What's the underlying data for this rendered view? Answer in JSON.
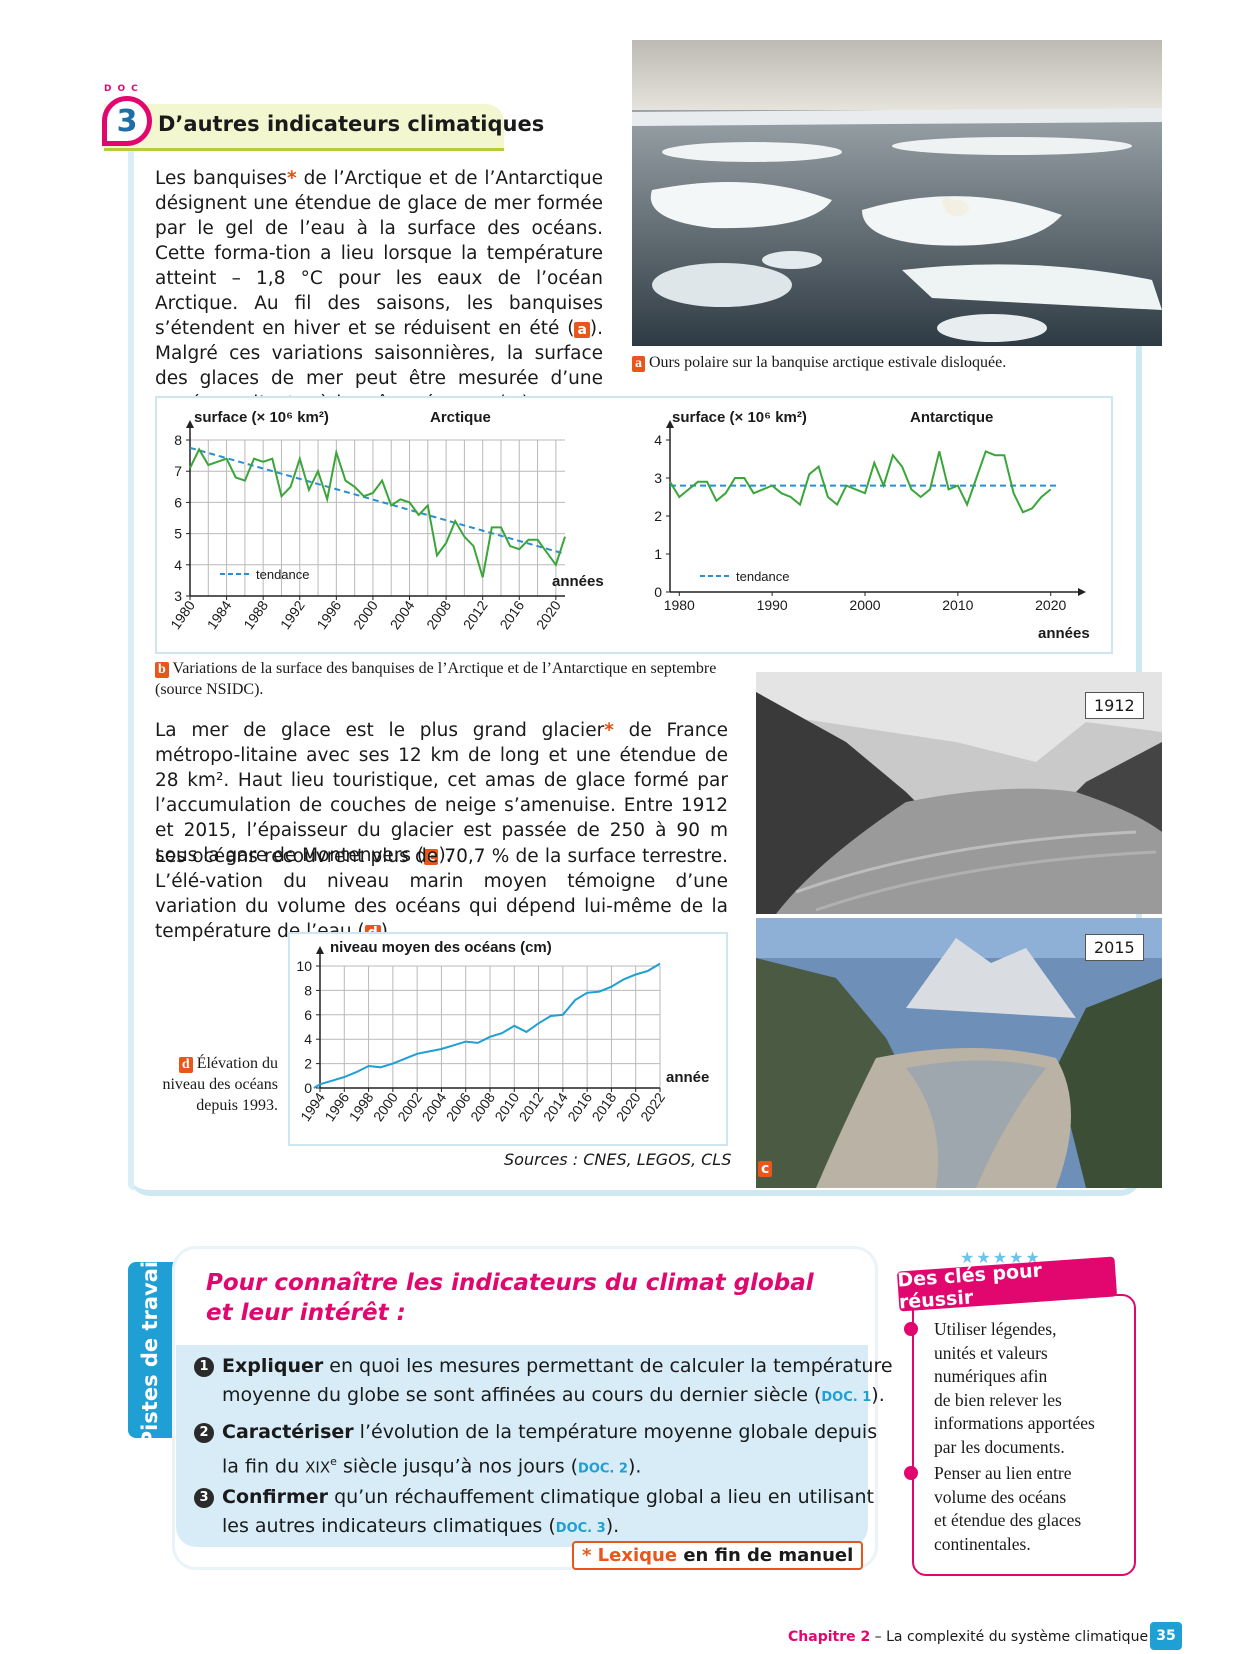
{
  "doc": {
    "small_label": "DOC",
    "number": "3",
    "title": "D’autres indicateurs climatiques"
  },
  "text": {
    "p1_a": "Les banquises",
    "p1_b": " de l’Arctique et de l’Antarctique désignent une étendue de glace de mer formée par le gel de l’eau à la surface des océans. Cette forma-tion a lieu lorsque la température atteint – 1,8 °C pour les eaux de l’océan Arctique. Au fil des saisons, les banquises s’étendent en hiver et se réduisent en été (",
    "p1_c": "). Malgré ces variations saisonnières, la surface des glaces de mer peut être mesurée d’une année sur l’autre à la même époque (",
    "p1_d": ").",
    "p2_a": "La mer de glace est le plus grand glacier",
    "p2_b": " de France métropo-litaine avec ses 12 km de long et une étendue de 28 km². Haut lieu touristique, cet amas de glace formé par l’accumulation de couches de neige s’amenuise. Entre 1912 et 2015, l’épaisseur du glacier est passée de 250 à 90 m sous la gare de Montenvers (",
    "p2_c": ").",
    "p3_a": "Les océans recouvrent plus de 70,7 % de la surface terrestre. L’élé-vation du niveau marin moyen témoigne d’une variation du volume des océans qui dépend lui-même de la température de l’eau (",
    "p3_b": ").",
    "star": "*"
  },
  "tags": {
    "a": "a",
    "b": "b",
    "c": "c",
    "d": "d"
  },
  "captions": {
    "a": "Ours polaire sur la banquise arctique estivale disloquée.",
    "b": "Variations de la surface des banquises de l’Arctique et de l’Antarctique en septembre (source NSIDC).",
    "d": "Élévation du niveau des océans depuis 1993.",
    "sources": "Sources : CNES, LEGOS, CLS"
  },
  "photos": {
    "year1": "1912",
    "year2": "2015"
  },
  "chart_data": [
    {
      "type": "line",
      "title": "Arctique",
      "ylabel": "surface (× 10⁶ km²)",
      "xlabel": "années",
      "xlim": [
        1980,
        2021
      ],
      "ylim": [
        3,
        8
      ],
      "yticks": [
        3,
        4,
        5,
        6,
        7,
        8
      ],
      "xticks": [
        1980,
        1984,
        1988,
        1992,
        1996,
        2000,
        2004,
        2008,
        2012,
        2016,
        2020
      ],
      "grid": true,
      "legend": {
        "label": "tendance",
        "placement": "bottom-left"
      },
      "x": [
        1980,
        1981,
        1982,
        1983,
        1984,
        1985,
        1986,
        1987,
        1988,
        1989,
        1990,
        1991,
        1992,
        1993,
        1994,
        1995,
        1996,
        1997,
        1998,
        1999,
        2000,
        2001,
        2002,
        2003,
        2004,
        2005,
        2006,
        2007,
        2008,
        2009,
        2010,
        2011,
        2012,
        2013,
        2014,
        2015,
        2016,
        2017,
        2018,
        2019,
        2020,
        2021
      ],
      "series": [
        {
          "values": [
            7.1,
            7.7,
            7.2,
            7.3,
            7.4,
            6.8,
            6.7,
            7.4,
            7.3,
            7.4,
            6.2,
            6.5,
            7.4,
            6.4,
            7.0,
            6.1,
            7.6,
            6.7,
            6.5,
            6.2,
            6.3,
            6.7,
            5.9,
            6.1,
            6.0,
            5.6,
            5.9,
            4.3,
            4.7,
            5.4,
            4.9,
            4.6,
            3.6,
            5.2,
            5.2,
            4.6,
            4.5,
            4.8,
            4.8,
            4.4,
            4.0,
            4.9
          ],
          "color": "#3aa63a"
        },
        {
          "values": [
            7.75,
            4.35
          ],
          "x": [
            1980,
            2021
          ],
          "dashed": true,
          "color": "#2a8fd0"
        }
      ]
    },
    {
      "type": "line",
      "title": "Antarctique",
      "ylabel": "surface (× 10⁶ km²)",
      "xlabel": "années",
      "xlim": [
        1979,
        2021
      ],
      "ylim": [
        0,
        4
      ],
      "yticks": [
        0,
        1,
        2,
        3,
        4
      ],
      "xticks": [
        1980,
        1990,
        2000,
        2010,
        2020
      ],
      "grid": false,
      "legend": {
        "label": "tendance",
        "placement": "bottom-left"
      },
      "x": [
        1979,
        1980,
        1981,
        1982,
        1983,
        1984,
        1985,
        1986,
        1987,
        1988,
        1989,
        1990,
        1991,
        1992,
        1993,
        1994,
        1995,
        1996,
        1997,
        1998,
        1999,
        2000,
        2001,
        2002,
        2003,
        2004,
        2005,
        2006,
        2007,
        2008,
        2009,
        2010,
        2011,
        2012,
        2013,
        2014,
        2015,
        2016,
        2017,
        2018,
        2019,
        2020
      ],
      "series": [
        {
          "values": [
            2.9,
            2.5,
            2.7,
            2.9,
            2.9,
            2.4,
            2.6,
            3.0,
            3.0,
            2.6,
            2.7,
            2.8,
            2.6,
            2.5,
            2.3,
            3.1,
            3.3,
            2.5,
            2.3,
            2.8,
            2.7,
            2.6,
            3.4,
            2.8,
            3.6,
            3.3,
            2.7,
            2.5,
            2.7,
            3.7,
            2.7,
            2.8,
            2.3,
            3.0,
            3.7,
            3.6,
            3.6,
            2.6,
            2.1,
            2.2,
            2.5,
            2.7
          ],
          "color": "#3aa63a"
        },
        {
          "values": [
            2.8,
            2.8
          ],
          "x": [
            1979,
            2021
          ],
          "dashed": true,
          "color": "#2a8fd0"
        }
      ]
    },
    {
      "type": "line",
      "title": "",
      "ylabel": "niveau moyen des océans (cm)",
      "xlabel": "année",
      "xlim": [
        1994,
        2022
      ],
      "ylim": [
        0,
        10
      ],
      "yticks": [
        0,
        2,
        4,
        6,
        8,
        10
      ],
      "xticks": [
        1994,
        1996,
        1998,
        2000,
        2002,
        2004,
        2006,
        2008,
        2010,
        2012,
        2014,
        2016,
        2018,
        2020,
        2022
      ],
      "grid": true,
      "x": [
        1993.5,
        1994,
        1995,
        1996,
        1997,
        1998,
        1999,
        2000,
        2001,
        2002,
        2003,
        2004,
        2005,
        2006,
        2007,
        2008,
        2009,
        2010,
        2011,
        2012,
        2013,
        2014,
        2015,
        2016,
        2017,
        2018,
        2019,
        2020,
        2021,
        2022
      ],
      "series": [
        {
          "values": [
            0.0,
            0.3,
            0.6,
            0.9,
            1.3,
            1.8,
            1.7,
            2.0,
            2.4,
            2.8,
            3.0,
            3.2,
            3.5,
            3.8,
            3.7,
            4.2,
            4.5,
            5.1,
            4.6,
            5.3,
            5.9,
            6.0,
            7.2,
            7.8,
            7.9,
            8.3,
            8.9,
            9.3,
            9.6,
            10.2
          ],
          "color": "#1f9fd3"
        }
      ]
    }
  ],
  "pistes": {
    "tab_label": "Pistes de travail",
    "title_line1": "Pour connaître les indicateurs du climat global",
    "title_line2": "et leur intérêt :",
    "q1_num": "1",
    "q1_bold": "Expliquer",
    "q1_l1": " en quoi les mesures permettant de calculer la température",
    "q1_l2": "moyenne du globe se sont affinées au cours du dernier siècle (",
    "q1_ref": "DOC. 1",
    "q1_end": ").",
    "q2_num": "2",
    "q2_bold": "Caractériser",
    "q2_l1": " l’évolution de la température moyenne globale depuis",
    "q2_l2a": "la fin du ",
    "q2_roman": "XIX",
    "q2_sup": "e",
    "q2_l2b": " siècle jusqu’à nos jours (",
    "q2_ref": "DOC. 2",
    "q2_end": ").",
    "q3_num": "3",
    "q3_bold": "Confirmer",
    "q3_l1": " qu’un réchauffement climatique global a lieu en utilisant",
    "q3_l2": "les autres indicateurs climatiques (",
    "q3_ref": "DOC. 3",
    "q3_end": ").",
    "lexique_star": "* Lexique",
    "lexique_rest": " en fin de manuel"
  },
  "keys": {
    "banner": "Des clés pour réussir",
    "k1_lines": [
      "Utiliser légendes,",
      "unités et valeurs",
      "numériques afin",
      "de bien relever les",
      "informations apportées",
      "par les documents."
    ],
    "k2_lines": [
      "Penser au lien entre",
      "volume des océans",
      "et étendue des glaces",
      "continentales."
    ]
  },
  "footer": {
    "chapter": "Chapitre 2",
    "rest": " – La complexité du système climatique",
    "page": "35"
  },
  "colors": {
    "magenta": "#e2066f",
    "blue": "#1f9fd3",
    "orange": "#e8561a",
    "green": "#3aa63a"
  }
}
